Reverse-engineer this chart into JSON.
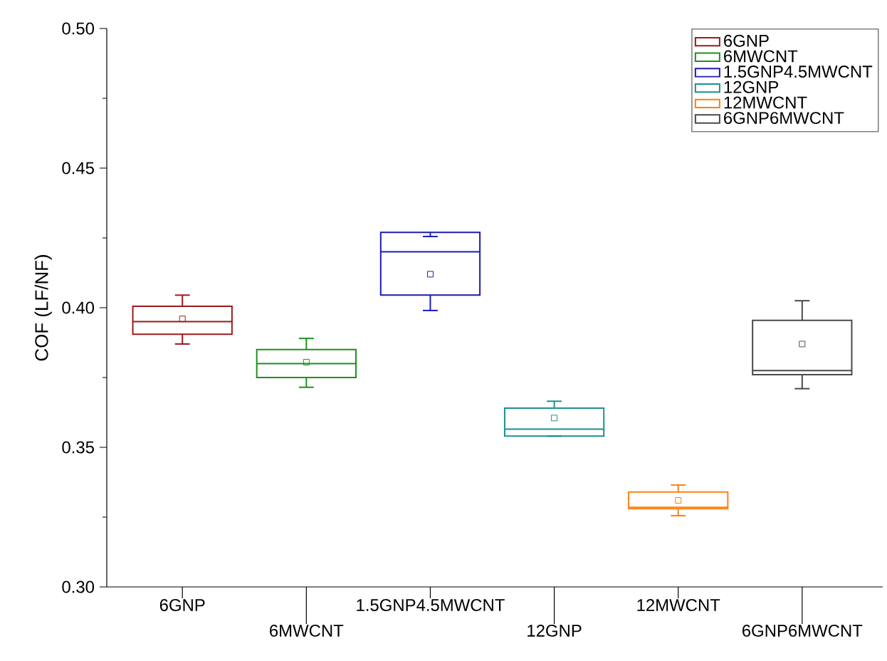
{
  "chart_data": {
    "type": "box",
    "ylabel": "COF (LF/NF)",
    "categories": [
      "6GNP",
      "6MWCNT",
      "1.5GNP4.5MWCNT",
      "12GNP",
      "12MWCNT",
      "6GNP6MWCNT"
    ],
    "series": [
      {
        "name": "6GNP",
        "color": "#9b1b1b",
        "boxes": [
          {
            "low": 0.387,
            "q1": 0.3905,
            "median": 0.395,
            "q3": 0.4005,
            "high": 0.4045,
            "mean": 0.396
          },
          null,
          null,
          null,
          null,
          null
        ]
      },
      {
        "name": "6MWCNT",
        "color": "#1f8f1f",
        "boxes": [
          null,
          {
            "low": 0.3715,
            "q1": 0.375,
            "median": 0.38,
            "q3": 0.385,
            "high": 0.389,
            "mean": 0.3805
          },
          null,
          null,
          null,
          null
        ]
      },
      {
        "name": "1.5GNP4.5MWCNT",
        "color": "#1c1cb0",
        "boxes": [
          null,
          null,
          {
            "low": 0.399,
            "q1": 0.4045,
            "median": 0.42,
            "q3": 0.427,
            "high": 0.4255,
            "mean": 0.412
          },
          null,
          null,
          null
        ]
      },
      {
        "name": "12GNP",
        "color": "#1f8f8f",
        "boxes": [
          null,
          null,
          null,
          {
            "low": 0.354,
            "q1": 0.354,
            "median": 0.3565,
            "q3": 0.364,
            "high": 0.3665,
            "mean": 0.3605
          },
          null,
          null
        ]
      },
      {
        "name": "12MWCNT",
        "color": "#ff8010",
        "boxes": [
          null,
          null,
          null,
          null,
          {
            "low": 0.3255,
            "q1": 0.328,
            "median": 0.3285,
            "q3": 0.334,
            "high": 0.3365,
            "mean": 0.331
          },
          null
        ]
      },
      {
        "name": "6GNP6MWCNT",
        "color": "#4a4a4a",
        "boxes": [
          null,
          null,
          null,
          null,
          null,
          {
            "low": 0.371,
            "q1": 0.376,
            "median": 0.3775,
            "q3": 0.3955,
            "high": 0.4025,
            "mean": 0.387
          }
        ]
      }
    ],
    "ylim": [
      0.3,
      0.5
    ],
    "yticks": [
      {
        "value": 0.3,
        "label": "0.30"
      },
      {
        "value": 0.35,
        "label": "0.35"
      },
      {
        "value": 0.4,
        "label": "0.40"
      },
      {
        "value": 0.45,
        "label": "0.45"
      },
      {
        "value": 0.5,
        "label": "0.50"
      }
    ],
    "legend": "top right",
    "marker": "square"
  }
}
